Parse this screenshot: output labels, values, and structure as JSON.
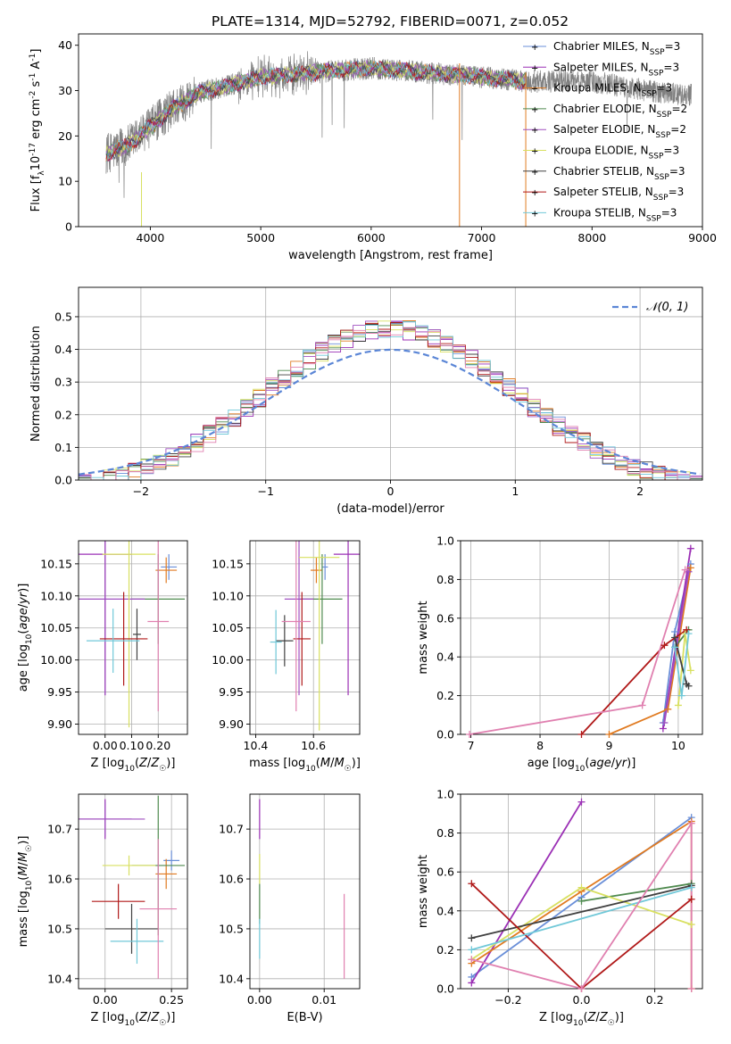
{
  "title": "PLATE=1314, MJD=52792, FIBERID=0071, z=0.052",
  "colors": {
    "Chabrier MILES": "#6a8fd8",
    "Salpeter MILES": "#9b30b5",
    "Kroupa MILES": "#e07a20",
    "Chabrier ELODIE": "#4f8a4f",
    "Salpeter ELODIE": "#a050c0",
    "Kroupa ELODIE": "#d8e060",
    "Chabrier STELIB": "#404040",
    "Salpeter STELIB": "#b01818",
    "Kroupa STELIB": "#70c8d8",
    "pink": "#e080b0",
    "gauss": "#5b86d6",
    "data": "#808080"
  },
  "chart_data": [
    {
      "id": "spectrum",
      "type": "line",
      "xlabel": "wavelength [Angstrom, rest frame]",
      "ylabel": "Flux [f_λ10^-17 erg cm^-2 s^-1 A^-1]",
      "xlim": [
        3350,
        9000
      ],
      "ylim": [
        0,
        42.5
      ],
      "xticks": [
        4000,
        5000,
        6000,
        7000,
        8000,
        9000
      ],
      "yticks": [
        0,
        10,
        20,
        30,
        40
      ],
      "legend_position": "right",
      "legend": [
        {
          "name": "Chabrier MILES",
          "nssp": "3"
        },
        {
          "name": "Salpeter MILES",
          "nssp": "3"
        },
        {
          "name": "Kroupa MILES",
          "nssp": "3"
        },
        {
          "name": "Chabrier ELODIE",
          "nssp": "2"
        },
        {
          "name": "Salpeter ELODIE",
          "nssp": "2"
        },
        {
          "name": "Kroupa ELODIE",
          "nssp": "3"
        },
        {
          "name": "Chabrier STELIB",
          "nssp": "3"
        },
        {
          "name": "Salpeter STELIB",
          "nssp": "3"
        },
        {
          "name": "Kroupa STELIB",
          "nssp": "3"
        }
      ],
      "continuum": {
        "x": [
          3600,
          3700,
          3800,
          3900,
          4000,
          4100,
          4200,
          4300,
          4400,
          4500,
          4700,
          5000,
          5500,
          6000,
          6500,
          7000,
          7400,
          8000,
          8500,
          8900
        ],
        "y": [
          16,
          17,
          18,
          20,
          22,
          24,
          26,
          27.5,
          29,
          30,
          31,
          33,
          34,
          35,
          34,
          33,
          32,
          32,
          30,
          29
        ]
      },
      "model_range": [
        3600,
        7400
      ],
      "data_range": [
        3600,
        8900
      ]
    },
    {
      "id": "residuals",
      "type": "histogram",
      "xlabel": "(data-model)/error",
      "ylabel": "Normed distribution",
      "xlim": [
        -2.5,
        2.5
      ],
      "ylim": [
        0,
        0.59
      ],
      "xticks": [
        -2,
        -1,
        0,
        1,
        2
      ],
      "yticks": [
        0.0,
        0.1,
        0.2,
        0.3,
        0.4,
        0.5
      ],
      "bin_width": 0.1,
      "gauss_label": "𝒩(0, 1)",
      "legend_position": "top-right"
    },
    {
      "id": "age_vs_Z",
      "type": "errorbar",
      "xlabel": "Z [log10(Z/Z☉)]",
      "ylabel": "age [log10(age/yr)]",
      "xlim": [
        -0.1,
        0.31
      ],
      "ylim": [
        9.884,
        10.186
      ],
      "xticks": [
        0.0,
        0.1,
        0.2
      ],
      "yticks": [
        9.9,
        9.95,
        10.0,
        10.05,
        10.1,
        10.15
      ],
      "points": [
        {
          "series": "Chabrier MILES",
          "x": 0.24,
          "y": 10.145,
          "xerr": 0.03,
          "yerr": 0.02
        },
        {
          "series": "Salpeter MILES",
          "x": 0.0,
          "y": 10.165,
          "xerr": 0.1,
          "yerr": 0.22
        },
        {
          "series": "Kroupa MILES",
          "x": 0.23,
          "y": 10.14,
          "xerr": 0.04,
          "yerr": 0.02
        },
        {
          "series": "Chabrier ELODIE",
          "x": 0.2,
          "y": 10.095,
          "xerr": 0.1,
          "yerr": 0.07
        },
        {
          "series": "Salpeter ELODIE",
          "x": 0.0,
          "y": 10.095,
          "xerr": 0.15,
          "yerr": 0.15
        },
        {
          "series": "Kroupa ELODIE",
          "x": 0.09,
          "y": 10.165,
          "xerr": 0.1,
          "yerr": 0.27
        },
        {
          "series": "Chabrier STELIB",
          "x": 0.12,
          "y": 10.04,
          "xerr": 0.015,
          "yerr": 0.04
        },
        {
          "series": "Salpeter STELIB",
          "x": 0.07,
          "y": 10.033,
          "xerr": 0.09,
          "yerr": 0.073
        },
        {
          "series": "Kroupa STELIB",
          "x": 0.03,
          "y": 10.03,
          "xerr": 0.1,
          "yerr": 0.05
        },
        {
          "series": "pink",
          "x": 0.2,
          "y": 10.06,
          "xerr": 0.04,
          "yerr": 0.14
        }
      ]
    },
    {
      "id": "age_vs_mass",
      "type": "errorbar",
      "xlabel": "mass [log10(M/M☉)]",
      "xlim": [
        10.38,
        10.76
      ],
      "ylim": [
        9.884,
        10.186
      ],
      "xticks": [
        10.4,
        10.6
      ],
      "yticks": [
        9.9,
        9.95,
        10.0,
        10.05,
        10.1,
        10.15
      ],
      "points": [
        {
          "series": "Chabrier MILES",
          "x": 10.64,
          "y": 10.145,
          "xerr": 0.01,
          "yerr": 0.02
        },
        {
          "series": "Salpeter MILES",
          "x": 10.72,
          "y": 10.165,
          "xerr": 0.05,
          "yerr": 0.22
        },
        {
          "series": "Kroupa MILES",
          "x": 10.61,
          "y": 10.14,
          "xerr": 0.02,
          "yerr": 0.02
        },
        {
          "series": "Chabrier ELODIE",
          "x": 10.63,
          "y": 10.095,
          "xerr": 0.07,
          "yerr": 0.07
        },
        {
          "series": "Salpeter ELODIE",
          "x": 10.55,
          "y": 10.095,
          "xerr": 0.05,
          "yerr": 0.15
        },
        {
          "series": "Kroupa ELODIE",
          "x": 10.62,
          "y": 10.16,
          "xerr": 0.07,
          "yerr": 0.27
        },
        {
          "series": "Chabrier STELIB",
          "x": 10.5,
          "y": 10.03,
          "xerr": 0.03,
          "yerr": 0.04
        },
        {
          "series": "Salpeter STELIB",
          "x": 10.56,
          "y": 10.033,
          "xerr": 0.03,
          "yerr": 0.073
        },
        {
          "series": "Kroupa STELIB",
          "x": 10.47,
          "y": 10.028,
          "xerr": 0.02,
          "yerr": 0.05
        },
        {
          "series": "pink",
          "x": 10.54,
          "y": 10.06,
          "xerr": 0.05,
          "yerr": 0.14
        }
      ]
    },
    {
      "id": "weight_vs_age",
      "type": "line",
      "xlabel": "age [log10(age/yr)]",
      "ylabel": "mass weight",
      "xlim": [
        6.85,
        10.35
      ],
      "ylim": [
        0,
        1.0
      ],
      "xticks": [
        7,
        8,
        9,
        10
      ],
      "yticks": [
        0.0,
        0.2,
        0.4,
        0.6,
        0.8,
        1.0
      ],
      "series": [
        {
          "name": "Chabrier MILES",
          "x": [
            9.78,
            9.95,
            10.18
          ],
          "y": [
            0.06,
            0.53,
            0.88
          ]
        },
        {
          "name": "Salpeter MILES",
          "x": [
            9.78,
            10.18
          ],
          "y": [
            0.03,
            0.96
          ]
        },
        {
          "name": "Kroupa MILES",
          "x": [
            9.0,
            9.85,
            10.18
          ],
          "y": [
            0.0,
            0.13,
            0.86
          ]
        },
        {
          "name": "Chabrier ELODIE",
          "x": [
            9.95,
            10.15
          ],
          "y": [
            0.45,
            0.54
          ]
        },
        {
          "name": "Salpeter ELODIE",
          "x": [
            9.8,
            10.15
          ],
          "y": [
            0.06,
            0.84
          ]
        },
        {
          "name": "Kroupa ELODIE",
          "x": [
            10.0,
            10.1,
            10.18
          ],
          "y": [
            0.15,
            0.52,
            0.33
          ]
        },
        {
          "name": "Chabrier STELIB",
          "x": [
            9.95,
            10.12,
            10.15
          ],
          "y": [
            0.5,
            0.26,
            0.25
          ]
        },
        {
          "name": "Salpeter STELIB",
          "x": [
            8.6,
            9.8,
            10.12
          ],
          "y": [
            0.0,
            0.46,
            0.54
          ]
        },
        {
          "name": "Kroupa STELIB",
          "x": [
            9.95,
            10.05,
            10.15
          ],
          "y": [
            0.45,
            0.2,
            0.52
          ]
        },
        {
          "name": "pink",
          "x": [
            6.98,
            9.48,
            10.1
          ],
          "y": [
            0.0,
            0.15,
            0.85
          ]
        }
      ]
    },
    {
      "id": "mass_vs_Z",
      "type": "errorbar",
      "xlabel": "Z [log10(Z/Z☉)]",
      "ylabel": "mass [log10(M/M☉)]",
      "xlim": [
        -0.1,
        0.31
      ],
      "ylim": [
        10.38,
        10.77
      ],
      "xticks": [
        0.0,
        0.25
      ],
      "yticks": [
        10.4,
        10.5,
        10.6,
        10.7
      ],
      "points": [
        {
          "series": "Chabrier MILES",
          "x": 0.25,
          "y": 10.637,
          "xerr": 0.03,
          "yerr": 0.02
        },
        {
          "series": "Salpeter MILES",
          "x": 0.0,
          "y": 10.72,
          "xerr": 0.1,
          "yerr": 0.04
        },
        {
          "series": "Kroupa MILES",
          "x": 0.23,
          "y": 10.61,
          "xerr": 0.04,
          "yerr": 0.03
        },
        {
          "series": "Chabrier ELODIE",
          "x": 0.2,
          "y": 10.627,
          "xerr": 0.1,
          "yerr": 0.14
        },
        {
          "series": "Salpeter ELODIE",
          "x": 0.0,
          "y": 10.72,
          "xerr": 0.15,
          "yerr": 0.035
        },
        {
          "series": "Kroupa ELODIE",
          "x": 0.09,
          "y": 10.627,
          "xerr": 0.1,
          "yerr": 0.02
        },
        {
          "series": "Chabrier STELIB",
          "x": 0.1,
          "y": 10.5,
          "xerr": 0.1,
          "yerr": 0.05
        },
        {
          "series": "Salpeter STELIB",
          "x": 0.05,
          "y": 10.555,
          "xerr": 0.1,
          "yerr": 0.035
        },
        {
          "series": "Kroupa STELIB",
          "x": 0.12,
          "y": 10.475,
          "xerr": 0.1,
          "yerr": 0.045
        },
        {
          "series": "pink",
          "x": 0.2,
          "y": 10.54,
          "xerr": 0.07,
          "yerr": 0.14
        }
      ]
    },
    {
      "id": "mass_vs_EBV",
      "type": "errorbar",
      "xlabel": "E(B-V)",
      "xlim": [
        -0.0015,
        0.0155
      ],
      "ylim": [
        10.38,
        10.77
      ],
      "xticks": [
        0.0,
        0.01
      ],
      "yticks": [
        10.4,
        10.5,
        10.6,
        10.7
      ],
      "points": [
        {
          "series": "Salpeter MILES",
          "x": 0.0,
          "y": 10.72,
          "xerr": 0.0,
          "yerr": 0.04
        },
        {
          "series": "Kroupa ELODIE",
          "x": 0.0,
          "y": 10.62,
          "xerr": 0.0,
          "yerr": 0.03
        },
        {
          "series": "Chabrier ELODIE",
          "x": 0.0,
          "y": 10.55,
          "xerr": 0.0,
          "yerr": 0.04
        },
        {
          "series": "Kroupa STELIB",
          "x": 0.0,
          "y": 10.48,
          "xerr": 0.0,
          "yerr": 0.04
        },
        {
          "series": "pink",
          "x": 0.0131,
          "y": 10.485,
          "xerr": 0.0,
          "yerr": 0.085
        }
      ]
    },
    {
      "id": "weight_vs_Z",
      "type": "line",
      "xlabel": "Z [log10(Z/Z☉)]",
      "ylabel": "mass weight",
      "xlim": [
        -0.33,
        0.33
      ],
      "ylim": [
        0,
        1.0
      ],
      "xticks": [
        -0.2,
        0.0,
        0.2
      ],
      "yticks": [
        0.0,
        0.2,
        0.4,
        0.6,
        0.8,
        1.0
      ],
      "series": [
        {
          "name": "Chabrier MILES",
          "x": [
            -0.3,
            0.0,
            0.3
          ],
          "y": [
            0.06,
            0.47,
            0.88
          ]
        },
        {
          "name": "Salpeter MILES",
          "x": [
            -0.3,
            0.0
          ],
          "y": [
            0.03,
            0.96
          ]
        },
        {
          "name": "Kroupa MILES",
          "x": [
            -0.3,
            0.0,
            0.3,
            0.3
          ],
          "y": [
            0.13,
            0.5,
            0.86,
            0.0
          ]
        },
        {
          "name": "Chabrier ELODIE",
          "x": [
            0.0,
            0.3
          ],
          "y": [
            0.45,
            0.54
          ]
        },
        {
          "name": "Kroupa ELODIE",
          "x": [
            -0.3,
            0.0,
            0.3
          ],
          "y": [
            0.15,
            0.52,
            0.33
          ]
        },
        {
          "name": "Chabrier STELIB",
          "x": [
            -0.3,
            0.3
          ],
          "y": [
            0.26,
            0.53
          ]
        },
        {
          "name": "Salpeter STELIB",
          "x": [
            -0.3,
            0.0,
            0.3
          ],
          "y": [
            0.54,
            0.0,
            0.46
          ]
        },
        {
          "name": "Kroupa STELIB",
          "x": [
            -0.3,
            0.3
          ],
          "y": [
            0.2,
            0.52
          ]
        },
        {
          "name": "pink",
          "x": [
            -0.3,
            0.0,
            0.3,
            0.3
          ],
          "y": [
            0.15,
            0.0,
            0.85,
            0.0
          ]
        }
      ]
    }
  ]
}
